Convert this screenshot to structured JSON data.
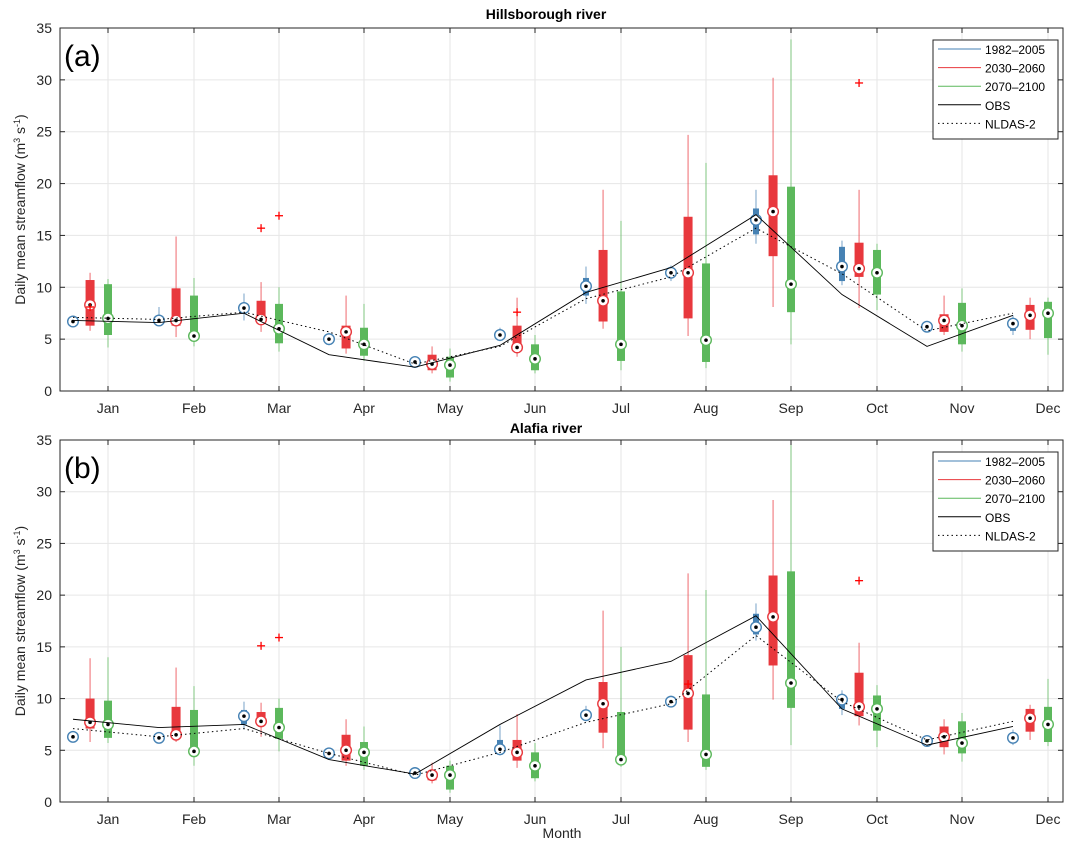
{
  "figure": {
    "xlabel": "Month",
    "colors": {
      "hist": "#4682b4",
      "mid": "#e8383d",
      "far": "#5cb85c",
      "outlier": "#ff0000",
      "line": "#000000"
    }
  },
  "chart_data": [
    {
      "type": "box",
      "panel_label": "(a)",
      "title": "Hillsborough river",
      "ylabel_main": "Daily mean streamflow (m",
      "ylabel_sup1": "3",
      "ylabel_mid": " s",
      "ylabel_sup2": "-1",
      "ylabel_end": ")",
      "ylim": [
        0,
        35
      ],
      "yticks": [
        0,
        5,
        10,
        15,
        20,
        25,
        30,
        35
      ],
      "grid": true,
      "legend_position": "top-right",
      "categories": [
        "Jan",
        "Feb",
        "Mar",
        "Apr",
        "May",
        "Jun",
        "Jul",
        "Aug",
        "Sep",
        "Oct",
        "Nov",
        "Dec"
      ],
      "legend": [
        "1982–2005",
        "2030–2060",
        "2070–2100",
        "OBS",
        "NLDAS-2"
      ],
      "series": [
        {
          "name": "1982–2005",
          "boxes": [
            [
              6.6,
              6.6,
              6.7,
              6.8,
              6.8
            ],
            [
              6.4,
              6.6,
              6.8,
              7.0,
              8.1
            ],
            [
              6.8,
              7.6,
              8.0,
              8.4,
              9.4
            ],
            [
              4.4,
              4.7,
              5.0,
              5.3,
              5.6
            ],
            [
              2.6,
              2.7,
              2.8,
              2.9,
              3.0
            ],
            [
              4.8,
              5.1,
              5.4,
              5.8,
              6.1
            ],
            [
              8.4,
              9.2,
              10.1,
              10.9,
              12.0
            ],
            [
              10.6,
              11.0,
              11.4,
              11.7,
              12.1
            ],
            [
              14.2,
              15.1,
              16.5,
              17.6,
              19.4
            ],
            [
              10.2,
              10.6,
              12.0,
              13.9,
              14.5
            ],
            [
              5.9,
              6.0,
              6.2,
              6.3,
              6.5
            ],
            [
              5.4,
              5.8,
              6.5,
              6.9,
              7.3
            ]
          ]
        },
        {
          "name": "2030–2060",
          "boxes": [
            [
              5.8,
              6.3,
              8.3,
              10.7,
              11.4
            ],
            [
              5.2,
              6.3,
              6.8,
              9.9,
              14.9
            ],
            [
              5.7,
              6.5,
              6.9,
              8.7,
              10.5
            ],
            [
              3.6,
              4.1,
              5.7,
              6.3,
              9.2
            ],
            [
              1.7,
              2.0,
              2.6,
              3.5,
              4.3
            ],
            [
              3.3,
              3.9,
              4.2,
              6.3,
              9.0
            ],
            [
              6.0,
              6.7,
              8.7,
              13.6,
              19.4
            ],
            [
              5.3,
              7.0,
              11.4,
              16.8,
              24.7
            ],
            [
              8.1,
              13.0,
              17.3,
              20.8,
              30.2
            ],
            [
              8.0,
              11.0,
              11.8,
              14.3,
              19.4
            ],
            [
              5.4,
              5.7,
              6.8,
              7.4,
              9.2
            ],
            [
              5.0,
              5.9,
              7.3,
              8.3,
              9.0
            ]
          ],
          "outliers": [
            [
              0,
              8.1
            ],
            [
              2,
              15.7
            ],
            [
              5,
              7.6
            ],
            [
              9,
              29.7
            ]
          ]
        },
        {
          "name": "2070–2100",
          "boxes": [
            [
              4.2,
              5.4,
              7.0,
              10.3,
              10.8
            ],
            [
              4.3,
              5.4,
              5.3,
              9.2,
              10.9
            ],
            [
              3.8,
              4.6,
              6.0,
              8.4,
              10.0
            ],
            [
              2.9,
              3.4,
              4.5,
              6.1,
              8.4
            ],
            [
              0.9,
              1.3,
              2.5,
              3.3,
              4.1
            ],
            [
              1.7,
              2.0,
              3.1,
              4.5,
              5.4
            ],
            [
              2.0,
              2.9,
              4.5,
              9.6,
              16.4
            ],
            [
              2.2,
              2.8,
              4.9,
              12.3,
              22.0
            ],
            [
              4.5,
              7.6,
              10.3,
              19.7,
              33.9
            ],
            [
              7.8,
              9.3,
              11.4,
              13.6,
              14.2
            ],
            [
              3.8,
              4.5,
              6.3,
              8.5,
              9.9
            ],
            [
              3.5,
              5.1,
              7.5,
              8.6,
              9.0
            ]
          ],
          "outliers": [
            [
              2,
              16.9
            ]
          ]
        }
      ],
      "obs": [
        6.8,
        6.6,
        7.5,
        3.5,
        2.3,
        4.4,
        9.5,
        11.9,
        17.0,
        9.3,
        4.3,
        7.3
      ],
      "nldas": [
        7.1,
        6.9,
        7.6,
        5.7,
        2.6,
        4.3,
        8.9,
        11.0,
        15.7,
        11.3,
        5.8,
        7.5
      ]
    },
    {
      "type": "box",
      "panel_label": "(b)",
      "title": "Alafia river",
      "ylabel_main": "Daily mean streamflow (m",
      "ylabel_sup1": "3",
      "ylabel_mid": " s",
      "ylabel_sup2": "-1",
      "ylabel_end": ")",
      "ylim": [
        0,
        35
      ],
      "yticks": [
        0,
        5,
        10,
        15,
        20,
        25,
        30,
        35
      ],
      "grid": true,
      "legend_position": "top-right",
      "categories": [
        "Jan",
        "Feb",
        "Mar",
        "Apr",
        "May",
        "Jun",
        "Jul",
        "Aug",
        "Sep",
        "Oct",
        "Nov",
        "Dec"
      ],
      "legend": [
        "1982–2005",
        "2030–2060",
        "2070–2100",
        "OBS",
        "NLDAS-2"
      ],
      "series": [
        {
          "name": "1982–2005",
          "boxes": [
            [
              6.1,
              6.2,
              6.3,
              6.4,
              6.5
            ],
            [
              5.9,
              6.0,
              6.2,
              6.3,
              6.5
            ],
            [
              7.0,
              7.5,
              8.3,
              8.9,
              9.7
            ],
            [
              4.2,
              4.5,
              4.7,
              4.9,
              5.1
            ],
            [
              2.6,
              2.7,
              2.8,
              2.9,
              3.0
            ],
            [
              4.5,
              4.8,
              5.1,
              6.0,
              7.4
            ],
            [
              7.8,
              8.2,
              8.4,
              8.8,
              9.3
            ],
            [
              9.3,
              9.5,
              9.7,
              9.9,
              10.1
            ],
            [
              15.6,
              16.2,
              16.9,
              18.2,
              19.2
            ],
            [
              8.4,
              9.0,
              9.9,
              10.3,
              10.8
            ],
            [
              5.7,
              5.8,
              5.9,
              6.1,
              6.3
            ],
            [
              5.5,
              5.8,
              6.2,
              6.6,
              7.0
            ]
          ]
        },
        {
          "name": "2030–2060",
          "boxes": [
            [
              5.8,
              7.1,
              7.7,
              10.0,
              13.9
            ],
            [
              5.8,
              6.3,
              6.5,
              9.2,
              13.0
            ],
            [
              6.3,
              7.4,
              7.8,
              8.7,
              9.6
            ],
            [
              3.5,
              4.0,
              5.0,
              6.5,
              8.0
            ],
            [
              1.8,
              2.1,
              2.6,
              3.0,
              3.8
            ],
            [
              3.3,
              4.0,
              4.8,
              6.0,
              8.5
            ],
            [
              5.2,
              6.7,
              9.5,
              11.6,
              18.5
            ],
            [
              5.8,
              7.0,
              10.5,
              14.2,
              22.1
            ],
            [
              9.9,
              13.2,
              17.9,
              21.9,
              29.2
            ],
            [
              7.4,
              8.3,
              9.2,
              12.5,
              15.4
            ],
            [
              4.6,
              5.3,
              6.3,
              7.3,
              8.0
            ],
            [
              6.0,
              6.8,
              8.1,
              9.0,
              9.4
            ]
          ],
          "outliers": [
            [
              2,
              15.1
            ],
            [
              7,
              11.4
            ],
            [
              9,
              21.4
            ]
          ]
        },
        {
          "name": "2070–2100",
          "boxes": [
            [
              5.7,
              6.2,
              7.5,
              9.8,
              14.0
            ],
            [
              3.5,
              4.9,
              4.9,
              8.9,
              11.2
            ],
            [
              4.9,
              6.1,
              7.2,
              9.1,
              10.0
            ],
            [
              3.1,
              3.5,
              4.8,
              5.8,
              7.3
            ],
            [
              0.9,
              1.2,
              2.6,
              3.5,
              4.0
            ],
            [
              2.0,
              2.3,
              3.5,
              4.8,
              5.7
            ],
            [
              3.4,
              4.1,
              4.1,
              8.7,
              15.0
            ],
            [
              3.1,
              3.4,
              4.6,
              10.4,
              20.5
            ],
            [
              5.5,
              9.1,
              11.5,
              22.3,
              34.8
            ],
            [
              5.3,
              6.9,
              9.0,
              10.3,
              11.3
            ],
            [
              3.9,
              4.7,
              5.7,
              7.8,
              8.6
            ],
            [
              5.4,
              5.8,
              7.5,
              9.2,
              11.9
            ]
          ],
          "outliers": [
            [
              2,
              15.9
            ]
          ]
        }
      ],
      "obs": [
        8.0,
        7.2,
        7.5,
        4.1,
        2.7,
        7.5,
        11.8,
        13.6,
        18.0,
        9.0,
        5.5,
        7.3
      ],
      "nldas": [
        7.1,
        6.3,
        7.1,
        4.7,
        2.6,
        4.8,
        7.7,
        9.5,
        16.1,
        9.7,
        6.0,
        7.8
      ]
    }
  ]
}
